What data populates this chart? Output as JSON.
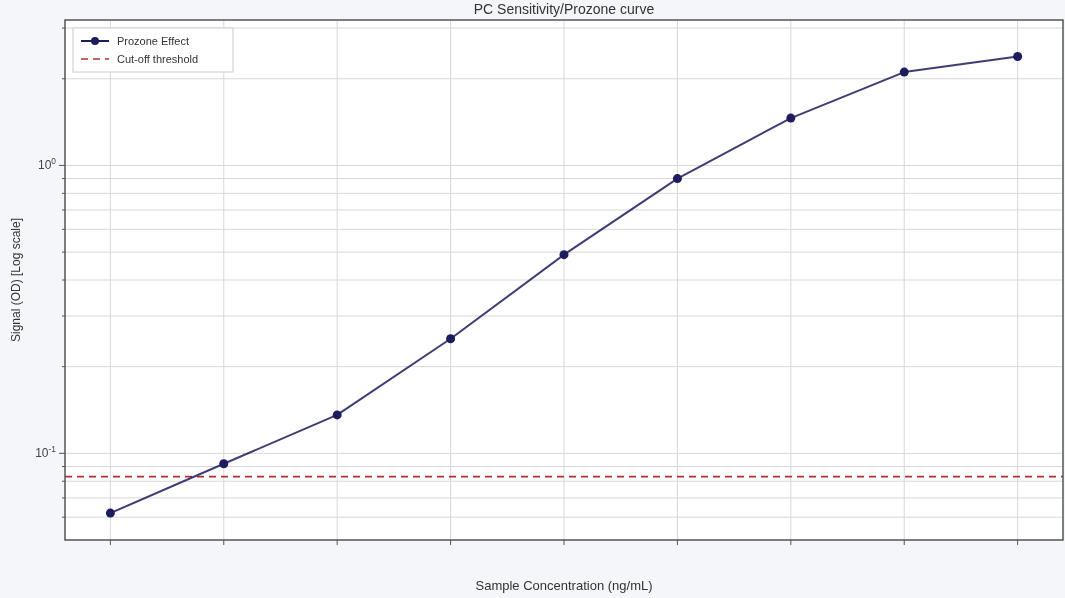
{
  "chart_data": {
    "type": "line",
    "title": "PC Sensitivity/Prozone curve",
    "xlabel": "Sample Concentration (ng/mL)",
    "ylabel": "Signal (OD) [Log scale]",
    "categories": [
      null,
      null,
      null,
      null,
      null,
      null,
      null,
      null,
      null
    ],
    "series": [
      {
        "name": "Prozone Effect",
        "color": "#1c1c5e",
        "values": [
          0.062,
          0.092,
          0.136,
          0.25,
          0.49,
          0.9,
          1.46,
          2.11,
          2.39
        ]
      }
    ],
    "log": "y",
    "ylim": [
      0.05,
      3.2
    ],
    "yticks": [
      {
        "value": 0.06,
        "label": null
      },
      {
        "value": 0.07,
        "label": null
      },
      {
        "value": 0.08,
        "label": null
      },
      {
        "value": 0.09,
        "label": null
      },
      {
        "value": 0.1,
        "label": "10$^{-1}$"
      },
      {
        "value": 0.2,
        "label": null
      },
      {
        "value": 0.3,
        "label": null
      },
      {
        "value": 0.4,
        "label": null
      },
      {
        "value": 0.5,
        "label": null
      },
      {
        "value": 0.6,
        "label": null
      },
      {
        "value": 0.7,
        "label": null
      },
      {
        "value": 0.8,
        "label": null
      },
      {
        "value": 0.9,
        "label": null
      },
      {
        "value": 1,
        "label": "10$^{0}$"
      },
      {
        "value": 2,
        "label": null
      },
      {
        "value": 3,
        "label": null
      }
    ],
    "ref_lines": [
      {
        "axis": "y",
        "value": 0.083,
        "label": "Cut-off threshold",
        "color": "#b03030",
        "line_style": "dashed"
      }
    ],
    "grid": true,
    "legend": "top left",
    "marker": "circle",
    "line_style": "solid"
  }
}
